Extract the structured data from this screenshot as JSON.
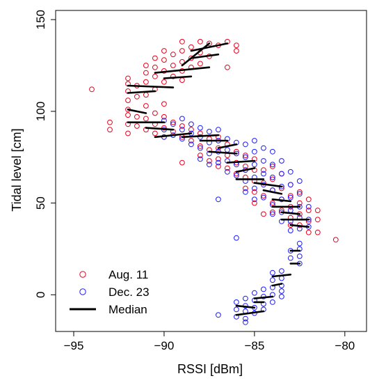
{
  "chart_data": {
    "type": "scatter",
    "title": "",
    "xlabel": "RSSI [dBm]",
    "ylabel": "Tidal level [cm]",
    "xlim": [
      -96,
      -78.8
    ],
    "ylim": [
      -20,
      155
    ],
    "xticks": [
      -95,
      -90,
      -85,
      -80
    ],
    "xtick_labels": [
      "−95",
      "−90",
      "−85",
      "−80"
    ],
    "yticks": [
      0,
      50,
      100,
      150
    ],
    "ytick_labels": [
      "0",
      "50",
      "100",
      "150"
    ],
    "grid": false,
    "legend_position": "bottom-left",
    "series": [
      {
        "name": "Aug. 11",
        "marker": "circle-open",
        "color": "#e8001c",
        "points": [
          [
            -94,
            112
          ],
          [
            -93,
            94
          ],
          [
            -93,
            90
          ],
          [
            -92,
            118
          ],
          [
            -92,
            115
          ],
          [
            -92,
            111
          ],
          [
            -92,
            106
          ],
          [
            -92,
            101
          ],
          [
            -92,
            98
          ],
          [
            -92,
            93
          ],
          [
            -92,
            88
          ],
          [
            -91.5,
            114
          ],
          [
            -91.5,
            108
          ],
          [
            -91.5,
            97
          ],
          [
            -91.5,
            92
          ],
          [
            -91,
            125
          ],
          [
            -91,
            121
          ],
          [
            -91,
            116
          ],
          [
            -91,
            109
          ],
          [
            -91,
            103
          ],
          [
            -91,
            96
          ],
          [
            -91,
            90
          ],
          [
            -90.5,
            129
          ],
          [
            -90.5,
            124
          ],
          [
            -90.5,
            119
          ],
          [
            -90.5,
            112
          ],
          [
            -90.5,
            99
          ],
          [
            -90.5,
            93
          ],
          [
            -90.5,
            88
          ],
          [
            -90,
            133
          ],
          [
            -90,
            128
          ],
          [
            -90,
            122
          ],
          [
            -90,
            116
          ],
          [
            -90,
            104
          ],
          [
            -90,
            97
          ],
          [
            -90,
            91
          ],
          [
            -90,
            86
          ],
          [
            -89.5,
            131
          ],
          [
            -89.5,
            125
          ],
          [
            -89.5,
            119
          ],
          [
            -89.5,
            94
          ],
          [
            -89.5,
            89
          ],
          [
            -89,
            138
          ],
          [
            -89,
            133
          ],
          [
            -89,
            127
          ],
          [
            -89,
            122
          ],
          [
            -89,
            117
          ],
          [
            -89,
            92
          ],
          [
            -89,
            86
          ],
          [
            -89,
            72
          ],
          [
            -88.5,
            135
          ],
          [
            -88.5,
            129
          ],
          [
            -88.5,
            124
          ],
          [
            -88.5,
            90
          ],
          [
            -88.5,
            84
          ],
          [
            -88,
            138
          ],
          [
            -88,
            132
          ],
          [
            -88,
            126
          ],
          [
            -88,
            88
          ],
          [
            -88,
            81
          ],
          [
            -88,
            76
          ],
          [
            -87.5,
            137
          ],
          [
            -87.5,
            130
          ],
          [
            -87.5,
            85
          ],
          [
            -87.5,
            79
          ],
          [
            -87.5,
            73
          ],
          [
            -87,
            136
          ],
          [
            -87,
            86
          ],
          [
            -87,
            80
          ],
          [
            -87,
            74
          ],
          [
            -87,
            70
          ],
          [
            -86.5,
            138
          ],
          [
            -86.5,
            124
          ],
          [
            -86.5,
            82
          ],
          [
            -86.5,
            76
          ],
          [
            -86.5,
            69
          ],
          [
            -86,
            136
          ],
          [
            -86,
            133
          ],
          [
            -86,
            78
          ],
          [
            -86,
            72
          ],
          [
            -86,
            66
          ],
          [
            -85.5,
            76
          ],
          [
            -85.5,
            70
          ],
          [
            -85.5,
            64
          ],
          [
            -85.5,
            58
          ],
          [
            -85,
            74
          ],
          [
            -85,
            68
          ],
          [
            -85,
            62
          ],
          [
            -85,
            56
          ],
          [
            -85,
            50
          ],
          [
            -84.5,
            68
          ],
          [
            -84.5,
            61
          ],
          [
            -84.5,
            54
          ],
          [
            -84.5,
            44
          ],
          [
            -84,
            70
          ],
          [
            -84,
            63
          ],
          [
            -84,
            57
          ],
          [
            -84,
            50
          ],
          [
            -84,
            45
          ],
          [
            -83.5,
            66
          ],
          [
            -83.5,
            58
          ],
          [
            -83.5,
            52
          ],
          [
            -83.5,
            46
          ],
          [
            -83,
            60
          ],
          [
            -83,
            54
          ],
          [
            -83,
            48
          ],
          [
            -83,
            42
          ],
          [
            -83,
            38
          ],
          [
            -82.5,
            56
          ],
          [
            -82.5,
            50
          ],
          [
            -82.5,
            44
          ],
          [
            -82.5,
            38
          ],
          [
            -82,
            52
          ],
          [
            -82,
            46
          ],
          [
            -82,
            40
          ],
          [
            -82,
            34
          ],
          [
            -81.5,
            46
          ],
          [
            -81.5,
            41
          ],
          [
            -81.5,
            34
          ],
          [
            -80.5,
            30
          ]
        ]
      },
      {
        "name": "Dec. 23",
        "marker": "circle-open",
        "color": "#1a1aff",
        "points": [
          [
            -90,
            95
          ],
          [
            -90,
            90
          ],
          [
            -90,
            86
          ],
          [
            -89.5,
            93
          ],
          [
            -89.5,
            87
          ],
          [
            -89,
            96
          ],
          [
            -89,
            90
          ],
          [
            -89,
            85
          ],
          [
            -88.5,
            93
          ],
          [
            -88.5,
            88
          ],
          [
            -88.5,
            82
          ],
          [
            -88,
            91
          ],
          [
            -88,
            86
          ],
          [
            -88,
            80
          ],
          [
            -88,
            74
          ],
          [
            -87.5,
            89
          ],
          [
            -87.5,
            83
          ],
          [
            -87.5,
            77
          ],
          [
            -87.5,
            71
          ],
          [
            -87,
            90
          ],
          [
            -87,
            84
          ],
          [
            -87,
            78
          ],
          [
            -87,
            72
          ],
          [
            -87,
            52
          ],
          [
            -86.5,
            85
          ],
          [
            -86.5,
            79
          ],
          [
            -86.5,
            73
          ],
          [
            -86.5,
            67
          ],
          [
            -86,
            83
          ],
          [
            -86,
            77
          ],
          [
            -86,
            71
          ],
          [
            -86,
            65
          ],
          [
            -86,
            31
          ],
          [
            -85.5,
            82
          ],
          [
            -85.5,
            75
          ],
          [
            -85.5,
            68
          ],
          [
            -85.5,
            62
          ],
          [
            -85.5,
            56
          ],
          [
            -85,
            84
          ],
          [
            -85,
            78
          ],
          [
            -85,
            71
          ],
          [
            -85,
            64
          ],
          [
            -85,
            58
          ],
          [
            -85,
            52
          ],
          [
            -84.5,
            80
          ],
          [
            -84.5,
            73
          ],
          [
            -84.5,
            66
          ],
          [
            -84.5,
            60
          ],
          [
            -84.5,
            53
          ],
          [
            -84,
            78
          ],
          [
            -84,
            71
          ],
          [
            -84,
            64
          ],
          [
            -84,
            57
          ],
          [
            -84,
            49
          ],
          [
            -84,
            44
          ],
          [
            -83.5,
            73
          ],
          [
            -83.5,
            66
          ],
          [
            -83.5,
            59
          ],
          [
            -83.5,
            52
          ],
          [
            -83.5,
            45
          ],
          [
            -83.5,
            40
          ],
          [
            -83,
            67
          ],
          [
            -83,
            60
          ],
          [
            -83,
            53
          ],
          [
            -83,
            46
          ],
          [
            -83,
            40
          ],
          [
            -83,
            35
          ],
          [
            -82.5,
            62
          ],
          [
            -82.5,
            55
          ],
          [
            -82.5,
            48
          ],
          [
            -82.5,
            42
          ],
          [
            -82.5,
            36
          ],
          [
            -82,
            48
          ],
          [
            -82,
            41
          ],
          [
            -82,
            37
          ],
          [
            -82.5,
            28
          ],
          [
            -82.5,
            25
          ],
          [
            -82.5,
            21
          ],
          [
            -82.5,
            17
          ],
          [
            -83,
            24
          ],
          [
            -83,
            20
          ],
          [
            -83.5,
            13
          ],
          [
            -83.5,
            9
          ],
          [
            -83.5,
            5
          ],
          [
            -83.5,
            2
          ],
          [
            -84,
            12
          ],
          [
            -84,
            8
          ],
          [
            -84,
            4
          ],
          [
            -84,
            0
          ],
          [
            -84,
            -4
          ],
          [
            -84.5,
            3
          ],
          [
            -84.5,
            -1
          ],
          [
            -84.5,
            -5
          ],
          [
            -84.5,
            -8
          ],
          [
            -85,
            1
          ],
          [
            -85,
            -3
          ],
          [
            -85,
            -7
          ],
          [
            -85,
            -10
          ],
          [
            -85.5,
            -2
          ],
          [
            -85.5,
            -6
          ],
          [
            -85.5,
            -9
          ],
          [
            -85.5,
            -13
          ],
          [
            -85.5,
            -15
          ],
          [
            -86,
            -4
          ],
          [
            -86,
            -8
          ],
          [
            -86,
            -12
          ],
          [
            -87,
            -11
          ],
          [
            -83.5,
            -1
          ]
        ]
      },
      {
        "name": "Median",
        "marker": "line",
        "color": "#000000",
        "points": [
          [
            -88.5,
            129
          ],
          [
            -87,
            131
          ],
          [
            -88.5,
            133
          ],
          [
            -86.5,
            137
          ],
          [
            -87.5,
            137
          ],
          [
            -89,
            125
          ],
          [
            -87.5,
            124
          ],
          [
            -90.5,
            121
          ],
          [
            -88.5,
            119
          ],
          [
            -90,
            118
          ],
          [
            -92,
            114
          ],
          [
            -89.5,
            113
          ],
          [
            -92,
            110
          ],
          [
            -90.5,
            111
          ],
          [
            -92,
            101
          ],
          [
            -91,
            99
          ],
          [
            -92,
            94
          ],
          [
            -90,
            94
          ],
          [
            -91,
            91
          ],
          [
            -89.5,
            90
          ],
          [
            -90.5,
            86
          ],
          [
            -88.5,
            88
          ],
          [
            -89,
            86
          ],
          [
            -87,
            87
          ],
          [
            -88,
            84
          ],
          [
            -86.5,
            84
          ],
          [
            -87,
            80
          ],
          [
            -86,
            82
          ],
          [
            -87.5,
            78
          ],
          [
            -86,
            77
          ],
          [
            -86.5,
            72
          ],
          [
            -85,
            73
          ],
          [
            -86,
            67
          ],
          [
            -85,
            69
          ],
          [
            -86,
            63
          ],
          [
            -84.5,
            63
          ],
          [
            -85,
            61
          ],
          [
            -83.5,
            59
          ],
          [
            -84.5,
            57
          ],
          [
            -83.5,
            55
          ],
          [
            -84,
            52
          ],
          [
            -83,
            51
          ],
          [
            -84,
            48
          ],
          [
            -82.5,
            48
          ],
          [
            -83.5,
            45
          ],
          [
            -82.5,
            44
          ],
          [
            -83.5,
            41
          ],
          [
            -82,
            41
          ],
          [
            -83,
            38
          ],
          [
            -82,
            37
          ],
          [
            -83,
            24
          ],
          [
            -82.5,
            24
          ],
          [
            -83,
            17
          ],
          [
            -82.5,
            17
          ],
          [
            -84,
            10
          ],
          [
            -83,
            11
          ],
          [
            -84,
            5
          ],
          [
            -83.5,
            6
          ],
          [
            -85,
            -2
          ],
          [
            -84,
            -1
          ],
          [
            -85,
            -4
          ],
          [
            -84.5,
            -4
          ],
          [
            -86,
            -6
          ],
          [
            -85,
            -7
          ],
          [
            -86,
            -11
          ],
          [
            -84.5,
            -9
          ]
        ]
      }
    ]
  }
}
